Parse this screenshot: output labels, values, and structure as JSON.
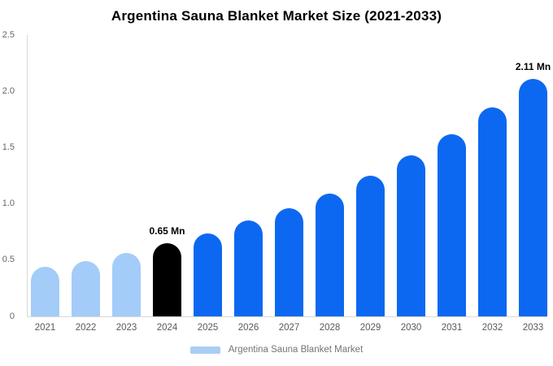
{
  "title": "Argentina Sauna Blanket Market Size (2021-2033)",
  "legend": {
    "label": "Argentina Sauna Blanket Market"
  },
  "chart_data": {
    "type": "bar",
    "title": "Argentina Sauna Blanket Market Size (2021-2033)",
    "xlabel": "",
    "ylabel": "",
    "unit": "Mn",
    "categories": [
      "2021",
      "2022",
      "2023",
      "2024",
      "2025",
      "2026",
      "2027",
      "2028",
      "2029",
      "2030",
      "2031",
      "2032",
      "2033"
    ],
    "values": [
      0.44,
      0.49,
      0.56,
      0.65,
      0.74,
      0.85,
      0.96,
      1.09,
      1.25,
      1.43,
      1.62,
      1.86,
      2.11
    ],
    "bar_segments": [
      "historical",
      "historical",
      "historical",
      "highlight",
      "forecast",
      "forecast",
      "forecast",
      "forecast",
      "forecast",
      "forecast",
      "forecast",
      "forecast",
      "forecast"
    ],
    "annotations": [
      {
        "category": "2024",
        "text": "0.65 Mn"
      },
      {
        "category": "2033",
        "text": "2.11 Mn"
      }
    ],
    "ylim": [
      0,
      2.5
    ],
    "yticks": [
      "0",
      "0.5",
      "1.0",
      "1.5",
      "2.0",
      "2.5"
    ],
    "ytick_values": [
      0,
      0.5,
      1.0,
      1.5,
      2.0,
      2.5
    ],
    "grid": false,
    "legend_position": "bottom",
    "legend_entries": [
      "Argentina Sauna Blanket Market"
    ],
    "colors": {
      "historical": "#A3CCF8",
      "highlight": "#000000",
      "forecast": "#0D68F1",
      "axis_line": "#D9D9D9",
      "tick_text": "#666666",
      "category_text": "#595959",
      "legend_text": "#757575",
      "legend_swatch": "#A9CDF6",
      "annotation_text": "#000000",
      "background": "#FFFFFF"
    }
  }
}
